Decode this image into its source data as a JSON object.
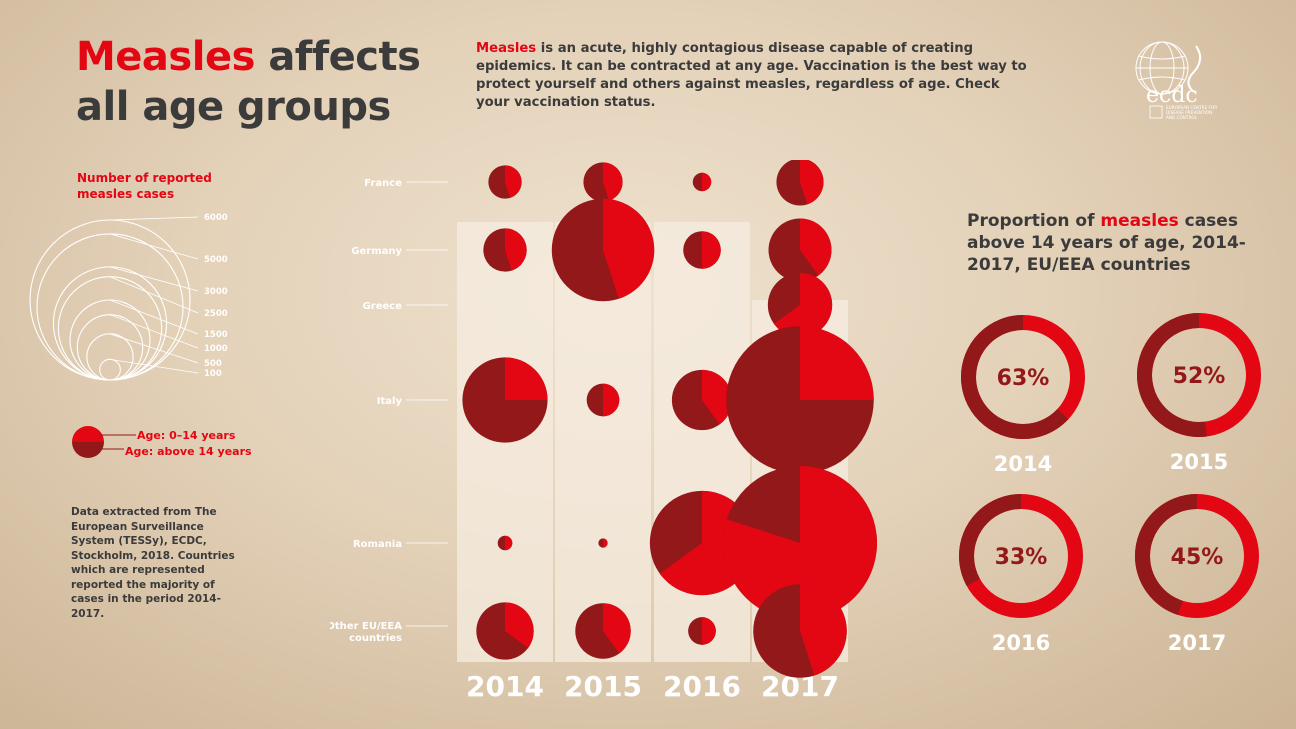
{
  "title": {
    "highlight": "Measles",
    "rest_line1": " affects",
    "line2": "all age groups"
  },
  "intro": {
    "highlight": "Measles",
    "text": " is an acute, highly contagious disease capable of creating epidemics. It can be contracted at any age. Vaccination is the best way to protect yourself and others against measles, regardless of age. Check your vaccination status."
  },
  "logo": {
    "name": "ecdc",
    "subtitle_lines": [
      "EUROPEAN CENTRE FOR",
      "DISEASE PREVENTION",
      "AND CONTROL"
    ]
  },
  "size_legend": {
    "title_lines": [
      "Number of reported",
      "measles cases"
    ],
    "values": [
      6000,
      5000,
      3000,
      2500,
      1500,
      1000,
      500,
      100
    ]
  },
  "age_legend": {
    "young": "Age: 0–14 years",
    "old": "Age: above 14 years"
  },
  "source_text": "Data extracted from The European Surveillance System (TESSy), ECDC, Stockholm, 2018. Countries which are represented reported the majority of cases in the period 2014-2017.",
  "colors": {
    "young": "#e30613",
    "old": "#931819",
    "text": "#3b3b3b",
    "column": "#f6ece0"
  },
  "chart_data": [
    {
      "type": "bubble-pie",
      "title": "Number of reported measles cases",
      "years": [
        "2014",
        "2015",
        "2016",
        "2017"
      ],
      "rows": [
        {
          "country": "France",
          "cases": [
            260,
            360,
            80,
            520
          ],
          "young_share": [
            0.45,
            0.45,
            0.5,
            0.45
          ]
        },
        {
          "country": "Germany",
          "cases": [
            440,
            2460,
            330,
            930
          ],
          "young_share": [
            0.45,
            0.45,
            0.5,
            0.4
          ]
        },
        {
          "country": "Greece",
          "cases": [
            0,
            0,
            0,
            970
          ],
          "young_share": [
            0,
            0,
            0,
            0.65
          ]
        },
        {
          "country": "Italy",
          "cases": [
            1700,
            250,
            850,
            5100
          ],
          "young_share": [
            0.25,
            0.5,
            0.4,
            0.25
          ]
        },
        {
          "country": "Romania",
          "cases": [
            50,
            20,
            2550,
            5560
          ],
          "young_share": [
            0.5,
            0.5,
            0.65,
            0.8
          ]
        },
        {
          "country_lines": [
            "Other EU/EEA",
            "countries"
          ],
          "country": "Other EU/EEA countries",
          "cases": [
            770,
            720,
            180,
            2050
          ],
          "young_share": [
            0.35,
            0.4,
            0.5,
            0.45
          ]
        }
      ]
    },
    {
      "type": "pie",
      "title": "Proportion of measles cases above 14 years of age, 2014-2017, EU/EEA countries",
      "title_parts": {
        "pre": "Proportion of ",
        "highlight": "measles",
        "post": " cases above 14 years of age, 2014-2017, EU/EEA countries"
      },
      "series": [
        {
          "year": "2014",
          "percent": 63,
          "label": "63%"
        },
        {
          "year": "2015",
          "percent": 52,
          "label": "52%"
        },
        {
          "year": "2016",
          "percent": 33,
          "label": "33%"
        },
        {
          "year": "2017",
          "percent": 45,
          "label": "45%"
        }
      ]
    }
  ]
}
